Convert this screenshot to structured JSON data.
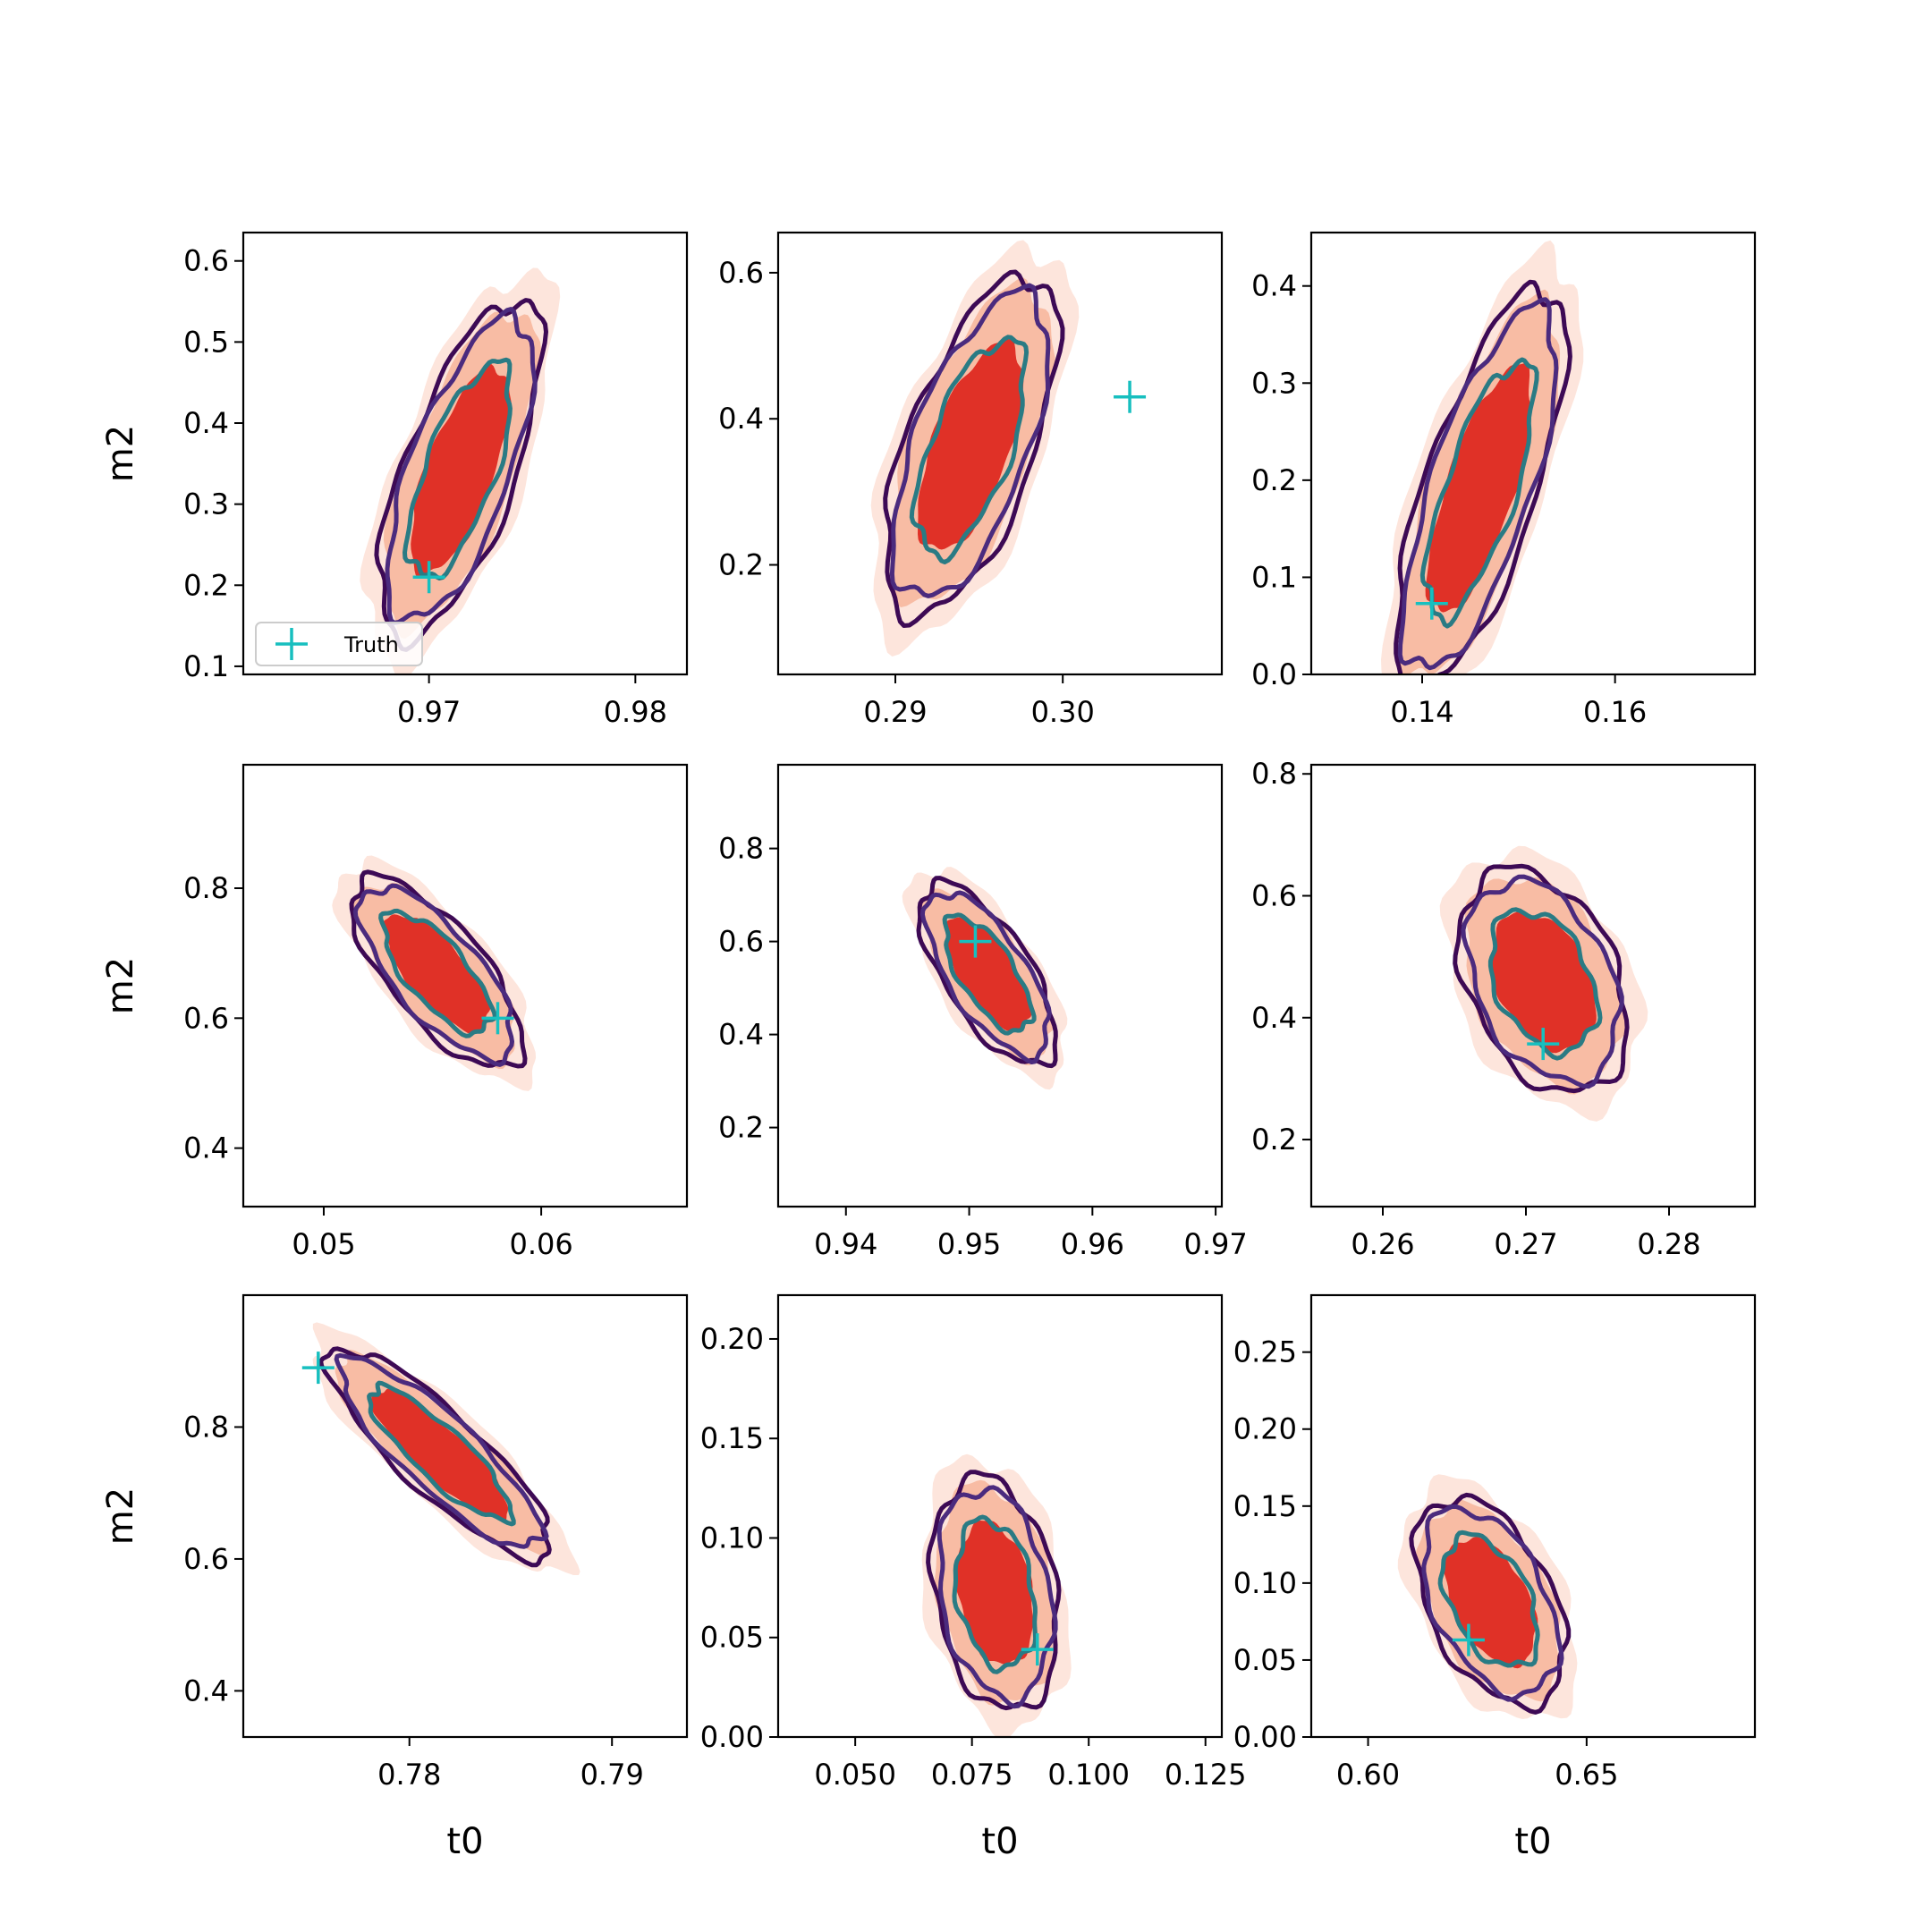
{
  "figure": {
    "xlabel": "t0",
    "ylabel": "m2",
    "legend_label": "Truth",
    "colors": {
      "fill_outer": "#fde5dc",
      "fill_mid": "#f8bca4",
      "fill_inner": "#e03127",
      "contour_outer": "#3d0a55",
      "contour_mid": "#4b2b7e",
      "contour_inner": "#2a7b84",
      "truth_marker": "#17bfbf",
      "axes": "#000000"
    }
  },
  "chart_data": [
    {
      "type": "contour",
      "xlabel": "",
      "ylabel": "m2",
      "xlim": [
        0.961,
        0.9825
      ],
      "ylim": [
        0.09,
        0.635
      ],
      "xticks": [
        "0.97",
        "0.98"
      ],
      "xtick_values": [
        0.97,
        0.98
      ],
      "yticks": [
        "0.1",
        "0.2",
        "0.3",
        "0.4",
        "0.5",
        "0.6"
      ],
      "ytick_values": [
        0.1,
        0.2,
        0.3,
        0.4,
        0.5,
        0.6
      ],
      "truth": [
        0.97,
        0.21
      ],
      "legend": true,
      "legend_location": "lower left",
      "center": [
        0.9715,
        0.34
      ],
      "spread": [
        0.0032,
        0.17
      ],
      "corr": 0.68,
      "tilt": 0.12
    },
    {
      "type": "contour",
      "xlabel": "",
      "ylabel": "",
      "xlim": [
        0.283,
        0.3095
      ],
      "ylim": [
        0.05,
        0.655
      ],
      "xticks": [
        "0.29",
        "0.30"
      ],
      "xtick_values": [
        0.29,
        0.3
      ],
      "yticks": [
        "0.2",
        "0.4",
        "0.6"
      ],
      "ytick_values": [
        0.2,
        0.4,
        0.6
      ],
      "truth": [
        0.304,
        0.43
      ],
      "legend": false,
      "center": [
        0.2945,
        0.36
      ],
      "spread": [
        0.0042,
        0.19
      ],
      "corr": 0.62,
      "tilt": 0.1
    },
    {
      "type": "contour",
      "xlabel": "",
      "ylabel": "",
      "xlim": [
        0.1285,
        0.1745
      ],
      "ylim": [
        0.0,
        0.455
      ],
      "xticks": [
        "0.14",
        "0.16"
      ],
      "xtick_values": [
        0.14,
        0.16
      ],
      "yticks": [
        "0.0",
        "0.1",
        "0.2",
        "0.3",
        "0.4"
      ],
      "ytick_values": [
        0.0,
        0.1,
        0.2,
        0.3,
        0.4
      ],
      "truth": [
        0.141,
        0.073
      ],
      "legend": false,
      "center": [
        0.146,
        0.19
      ],
      "spread": [
        0.0072,
        0.17
      ],
      "corr": 0.72,
      "tilt": 0.0
    },
    {
      "type": "contour",
      "xlabel": "",
      "ylabel": "m2",
      "xlim": [
        0.0463,
        0.0667
      ],
      "ylim": [
        0.31,
        0.99
      ],
      "xticks": [
        "0.05",
        "0.06"
      ],
      "xtick_values": [
        0.05,
        0.06
      ],
      "yticks": [
        "0.4",
        "0.6",
        "0.8"
      ],
      "ytick_values": [
        0.4,
        0.6,
        0.8
      ],
      "truth": [
        0.058,
        0.6
      ],
      "legend": false,
      "center": [
        0.0552,
        0.67
      ],
      "spread": [
        0.0032,
        0.12
      ],
      "corr": -0.72,
      "tilt": 0.0
    },
    {
      "type": "contour",
      "xlabel": "",
      "ylabel": "",
      "xlim": [
        0.9345,
        0.9705
      ],
      "ylim": [
        0.03,
        0.98
      ],
      "xticks": [
        "0.94",
        "0.95",
        "0.96",
        "0.97"
      ],
      "xtick_values": [
        0.94,
        0.95,
        0.96,
        0.97
      ],
      "yticks": [
        "0.2",
        "0.4",
        "0.6",
        "0.8"
      ],
      "ytick_values": [
        0.2,
        0.4,
        0.6,
        0.8
      ],
      "truth": [
        0.9505,
        0.6
      ],
      "legend": false,
      "center": [
        0.9515,
        0.53
      ],
      "spread": [
        0.0045,
        0.16
      ],
      "corr": -0.68,
      "tilt": 0.0
    },
    {
      "type": "contour",
      "xlabel": "",
      "ylabel": "",
      "xlim": [
        0.255,
        0.286
      ],
      "ylim": [
        0.09,
        0.815
      ],
      "xticks": [
        "0.26",
        "0.27",
        "0.28"
      ],
      "xtick_values": [
        0.26,
        0.27,
        0.28
      ],
      "yticks": [
        "0.2",
        "0.4",
        "0.6",
        "0.8"
      ],
      "ytick_values": [
        0.2,
        0.4,
        0.6,
        0.8
      ],
      "truth": [
        0.2712,
        0.357
      ],
      "legend": false,
      "center": [
        0.2712,
        0.46
      ],
      "spread": [
        0.0048,
        0.15
      ],
      "corr": -0.35,
      "tilt": 0.0
    },
    {
      "type": "contour",
      "xlabel": "t0",
      "ylabel": "m2",
      "xlim": [
        0.7718,
        0.7937
      ],
      "ylim": [
        0.33,
        1.0
      ],
      "xticks": [
        "0.78",
        "0.79"
      ],
      "xtick_values": [
        0.78,
        0.79
      ],
      "yticks": [
        "0.4",
        "0.6",
        "0.8"
      ],
      "ytick_values": [
        0.4,
        0.6,
        0.8
      ],
      "truth": [
        0.7755,
        0.89
      ],
      "legend": false,
      "center": [
        0.7815,
        0.76
      ],
      "spread": [
        0.0045,
        0.13
      ],
      "corr": -0.86,
      "tilt": 0.0
    },
    {
      "type": "contour",
      "xlabel": "t0",
      "ylabel": "",
      "xlim": [
        0.0335,
        0.1285
      ],
      "ylim": [
        0.0,
        0.222
      ],
      "xticks": [
        "0.050",
        "0.075",
        "0.100",
        "0.125"
      ],
      "xtick_values": [
        0.05,
        0.075,
        0.1,
        0.125
      ],
      "yticks": [
        "0.00",
        "0.05",
        "0.10",
        "0.15",
        "0.20"
      ],
      "ytick_values": [
        0.0,
        0.05,
        0.1,
        0.15,
        0.2
      ],
      "truth": [
        0.089,
        0.044
      ],
      "legend": false,
      "center": [
        0.08,
        0.072
      ],
      "spread": [
        0.011,
        0.048
      ],
      "corr": -0.25,
      "tilt": 0.0
    },
    {
      "type": "contour",
      "xlabel": "t0",
      "ylabel": "",
      "xlim": [
        0.587,
        0.6885
      ],
      "ylim": [
        0.0,
        0.287
      ],
      "xticks": [
        "0.60",
        "0.65"
      ],
      "xtick_values": [
        0.6,
        0.65
      ],
      "yticks": [
        "0.00",
        "0.05",
        "0.10",
        "0.15",
        "0.20",
        "0.25"
      ],
      "ytick_values": [
        0.0,
        0.05,
        0.1,
        0.15,
        0.2,
        0.25
      ],
      "truth": [
        0.623,
        0.063
      ],
      "legend": false,
      "center": [
        0.628,
        0.088
      ],
      "spread": [
        0.014,
        0.055
      ],
      "corr": -0.45,
      "tilt": 0.0
    }
  ]
}
